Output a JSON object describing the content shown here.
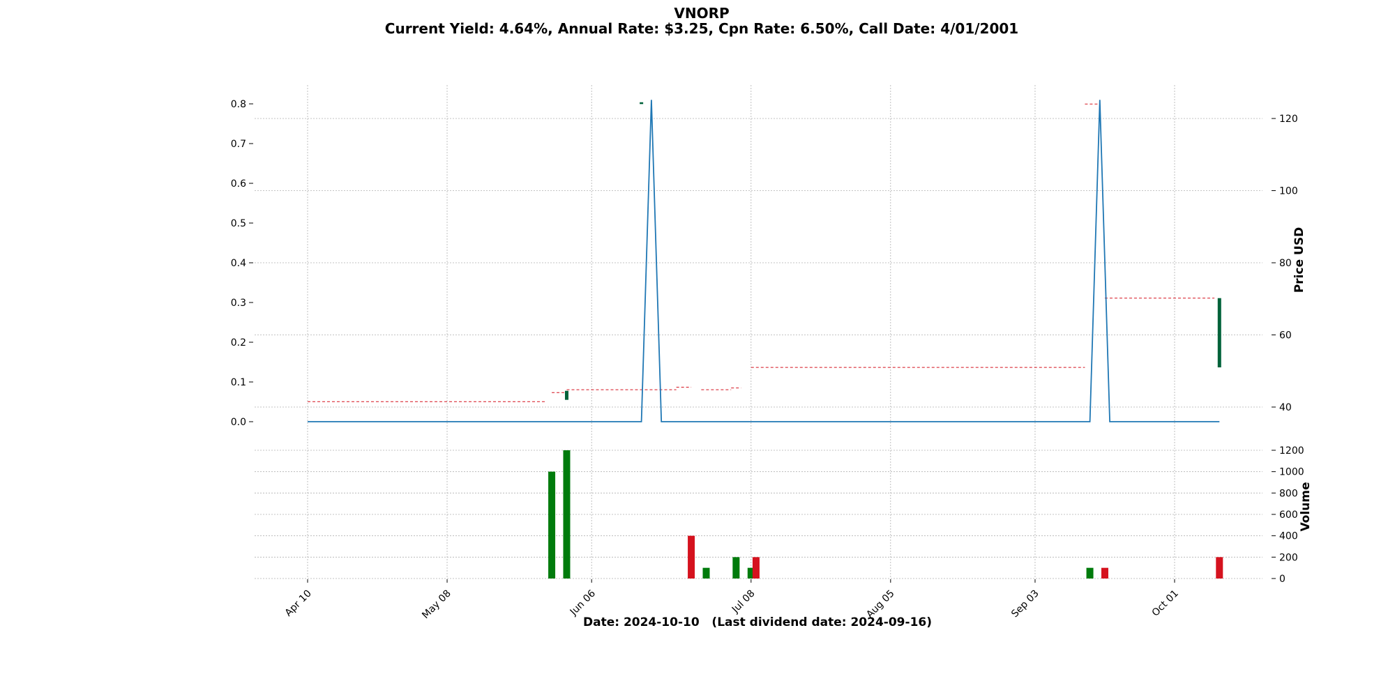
{
  "title": "VNORP",
  "subtitle": "Current Yield: 4.64%, Annual Rate: $3.25, Cpn Rate: 6.50%, Call Date: 4/01/2001",
  "xlabel": "Date: 2024-10-10   (Last dividend date: 2024-09-16)",
  "colors": {
    "up": "#007b0c",
    "down": "#d5121e",
    "candle_up": "#00623a",
    "line": "#1f77b4",
    "price_dash": "#d5121e"
  },
  "chart_data": {
    "type": "line",
    "x_ticks": [
      {
        "date": "2024-04-10",
        "label": "Apr 10"
      },
      {
        "date": "2024-05-08",
        "label": "May 08"
      },
      {
        "date": "2024-06-06",
        "label": "Jun 06"
      },
      {
        "date": "2024-07-08",
        "label": "Jul 08"
      },
      {
        "date": "2024-08-05",
        "label": "Aug 05"
      },
      {
        "date": "2024-09-03",
        "label": "Sep 03"
      },
      {
        "date": "2024-10-01",
        "label": "Oct 01"
      }
    ],
    "left_axis": {
      "ylim": [
        -0.03,
        0.85
      ],
      "ticks": [
        0.0,
        0.1,
        0.2,
        0.3,
        0.4,
        0.5,
        0.6,
        0.7,
        0.8
      ]
    },
    "right_axis": {
      "label": "Price USD",
      "ylim": [
        33,
        129
      ],
      "ticks": [
        40,
        60,
        80,
        100,
        120
      ]
    },
    "volume_axis": {
      "label": "Volume",
      "ylim": [
        0,
        1200
      ],
      "ticks": [
        0,
        200,
        400,
        600,
        800,
        1000,
        1200
      ]
    },
    "dividend_line": [
      {
        "date": "2024-04-10",
        "value": 0.0
      },
      {
        "date": "2024-06-16",
        "value": 0.0
      },
      {
        "date": "2024-06-18",
        "value": 0.81
      },
      {
        "date": "2024-06-20",
        "value": 0.0
      },
      {
        "date": "2024-09-14",
        "value": 0.0
      },
      {
        "date": "2024-09-16",
        "value": 0.81
      },
      {
        "date": "2024-09-18",
        "value": 0.0
      },
      {
        "date": "2024-10-10",
        "value": 0.0
      }
    ],
    "price_levels": [
      {
        "start": "2024-04-10",
        "end": "2024-05-28",
        "price": 41.5
      },
      {
        "start": "2024-05-29",
        "end": "2024-06-01",
        "price": 44.0
      },
      {
        "start": "2024-06-01",
        "end": "2024-06-23",
        "price": 44.8
      },
      {
        "start": "2024-06-23",
        "end": "2024-06-26",
        "price": 45.5
      },
      {
        "start": "2024-06-28",
        "end": "2024-07-04",
        "price": 44.8
      },
      {
        "start": "2024-07-04",
        "end": "2024-07-06",
        "price": 45.3
      },
      {
        "start": "2024-07-08",
        "end": "2024-09-13",
        "price": 51.0
      },
      {
        "start": "2024-09-13",
        "end": "2024-09-16",
        "price": 124.0
      },
      {
        "start": "2024-09-17",
        "end": "2024-10-09",
        "price": 70.2
      }
    ],
    "candles": [
      {
        "date": "2024-06-01",
        "open": 42.0,
        "close": 44.5
      },
      {
        "date": "2024-06-16",
        "open": 124.0,
        "close": 124.5
      },
      {
        "date": "2024-10-10",
        "open": 51.0,
        "close": 70.2
      }
    ],
    "volume": [
      {
        "date": "2024-05-29",
        "value": 1000,
        "dir": "up"
      },
      {
        "date": "2024-06-01",
        "value": 1200,
        "dir": "up"
      },
      {
        "date": "2024-06-26",
        "value": 400,
        "dir": "down"
      },
      {
        "date": "2024-06-29",
        "value": 100,
        "dir": "up"
      },
      {
        "date": "2024-07-05",
        "value": 200,
        "dir": "up"
      },
      {
        "date": "2024-07-08",
        "value": 100,
        "dir": "up"
      },
      {
        "date": "2024-07-09",
        "value": 200,
        "dir": "down"
      },
      {
        "date": "2024-09-14",
        "value": 100,
        "dir": "up"
      },
      {
        "date": "2024-09-17",
        "value": 100,
        "dir": "down"
      },
      {
        "date": "2024-10-10",
        "value": 200,
        "dir": "down"
      }
    ]
  }
}
